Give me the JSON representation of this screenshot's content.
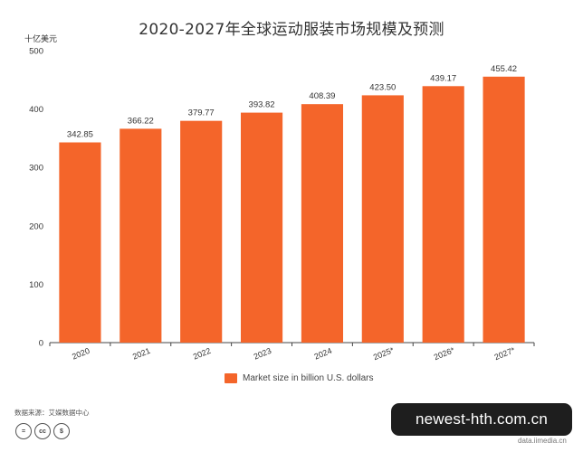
{
  "chart_data": {
    "type": "bar",
    "title": "2020-2027年全球运动服装市场规模及预测",
    "unit_label": "十亿美元",
    "categories": [
      "2020",
      "2021",
      "2022",
      "2023",
      "2024",
      "2025*",
      "2026*",
      "2027*"
    ],
    "series": [
      {
        "name": "Market size in billion U.S. dollars",
        "values": [
          342.85,
          366.22,
          379.77,
          393.82,
          408.39,
          423.5,
          439.17,
          455.42
        ],
        "value_labels": [
          "342.85",
          "366.22",
          "379.77",
          "393.82",
          "408.39",
          "423.50",
          "439.17",
          "455.42"
        ]
      }
    ],
    "y_ticks": [
      "0",
      "100",
      "200",
      "300",
      "400",
      "500"
    ],
    "ylim": [
      0,
      500
    ],
    "grid": false,
    "legend_position": "bottom-center",
    "bar_color": "#f4652a"
  },
  "footer": {
    "source": "数据来源：艾媒数据中心",
    "cc_icons": [
      "=",
      "cc",
      "$"
    ]
  },
  "watermark": {
    "text": "newest-hth.com.cn",
    "sub_text": "data.iimedia.cn"
  }
}
